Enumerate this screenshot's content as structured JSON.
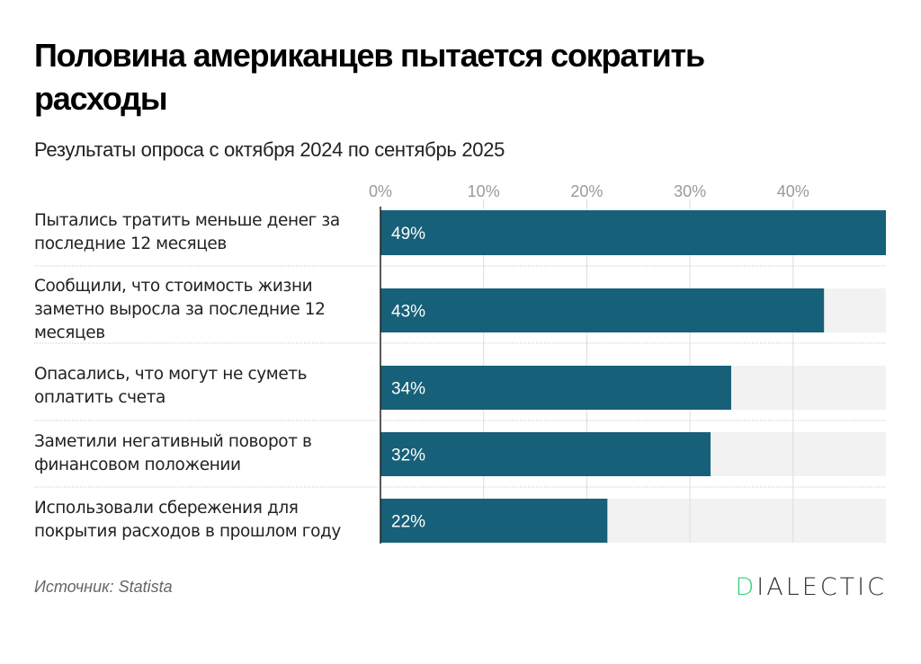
{
  "title": "Половина американцев пытается сократить расходы",
  "subtitle": "Результаты опроса с октября 2024 по сентябрь 2025",
  "source": "Источник: Statista",
  "logo": {
    "first": "D",
    "rest": "IALECTIC"
  },
  "colors": {
    "bar": "#176079",
    "track": "#f2f2f2",
    "grid": "#dddddd",
    "label_in_bar": "#ffffff",
    "tick": "#9a9a9a",
    "logo_accent": "#2fd17a"
  },
  "chart_data": {
    "type": "bar",
    "orientation": "horizontal",
    "title": "Половина американцев пытается сократить расходы",
    "subtitle": "Результаты опроса с октября 2024 по сентябрь 2025",
    "xlabel": "",
    "ylabel": "",
    "xlim": [
      0,
      49
    ],
    "x_ticks": [
      "0%",
      "10%",
      "20%",
      "30%",
      "40%"
    ],
    "x_tick_values": [
      0,
      10,
      20,
      30,
      40
    ],
    "grid": true,
    "categories": [
      "Пытались тратить меньше денег за последние 12 месяцев",
      "Сообщили, что стоимость жизни заметно выросла за последние 12 месяцев",
      "Опасались, что могут не суметь оплатить счета",
      "Заметили негативный поворот в финансовом положении",
      "Использовали сбережения для покрытия расходов в прошлом году"
    ],
    "values": [
      49,
      43,
      34,
      32,
      22
    ],
    "data_labels": [
      "49%",
      "43%",
      "34%",
      "32%",
      "22%"
    ],
    "source": "Источник: Statista"
  }
}
